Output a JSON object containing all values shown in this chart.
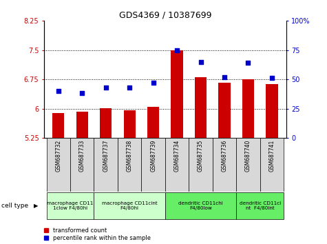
{
  "title": "GDS4369 / 10387699",
  "samples": [
    "GSM687732",
    "GSM687733",
    "GSM687737",
    "GSM687738",
    "GSM687739",
    "GSM687734",
    "GSM687735",
    "GSM687736",
    "GSM687740",
    "GSM687741"
  ],
  "red_values": [
    5.88,
    5.92,
    6.01,
    5.96,
    6.04,
    7.49,
    6.8,
    6.66,
    6.75,
    6.63
  ],
  "blue_values": [
    40,
    38,
    43,
    43,
    47,
    75,
    65,
    52,
    64,
    51
  ],
  "ylim_left": [
    5.25,
    8.25
  ],
  "ylim_right": [
    0,
    100
  ],
  "yticks_left": [
    5.25,
    6.0,
    6.75,
    7.5,
    8.25
  ],
  "yticks_right": [
    0,
    25,
    50,
    75,
    100
  ],
  "ytick_labels_left": [
    "5.25",
    "6",
    "6.75",
    "7.5",
    "8.25"
  ],
  "ytick_labels_right": [
    "0",
    "25",
    "50",
    "75",
    "100%"
  ],
  "hlines": [
    6.0,
    6.75,
    7.5
  ],
  "bar_color": "#cc0000",
  "dot_color": "#0000cc",
  "bar_bottom": 5.25,
  "cell_type_groups": [
    {
      "label": "macrophage CD11\n1clow F4/80hi",
      "start": 0,
      "end": 2,
      "color": "#ccffcc"
    },
    {
      "label": "macrophage CD11cint\nF4/80hi",
      "start": 2,
      "end": 5,
      "color": "#ccffcc"
    },
    {
      "label": "dendritic CD11chi\nF4/80low",
      "start": 5,
      "end": 8,
      "color": "#66ee66"
    },
    {
      "label": "dendritic CD11ci\nnt  F4/80int",
      "start": 8,
      "end": 10,
      "color": "#66ee66"
    }
  ],
  "legend_red": "transformed count",
  "legend_blue": "percentile rank within the sample",
  "cell_type_label": "cell type",
  "xtick_bg_color": "#d8d8d8",
  "background_color": "#ffffff",
  "plot_bg_color": "#ffffff"
}
